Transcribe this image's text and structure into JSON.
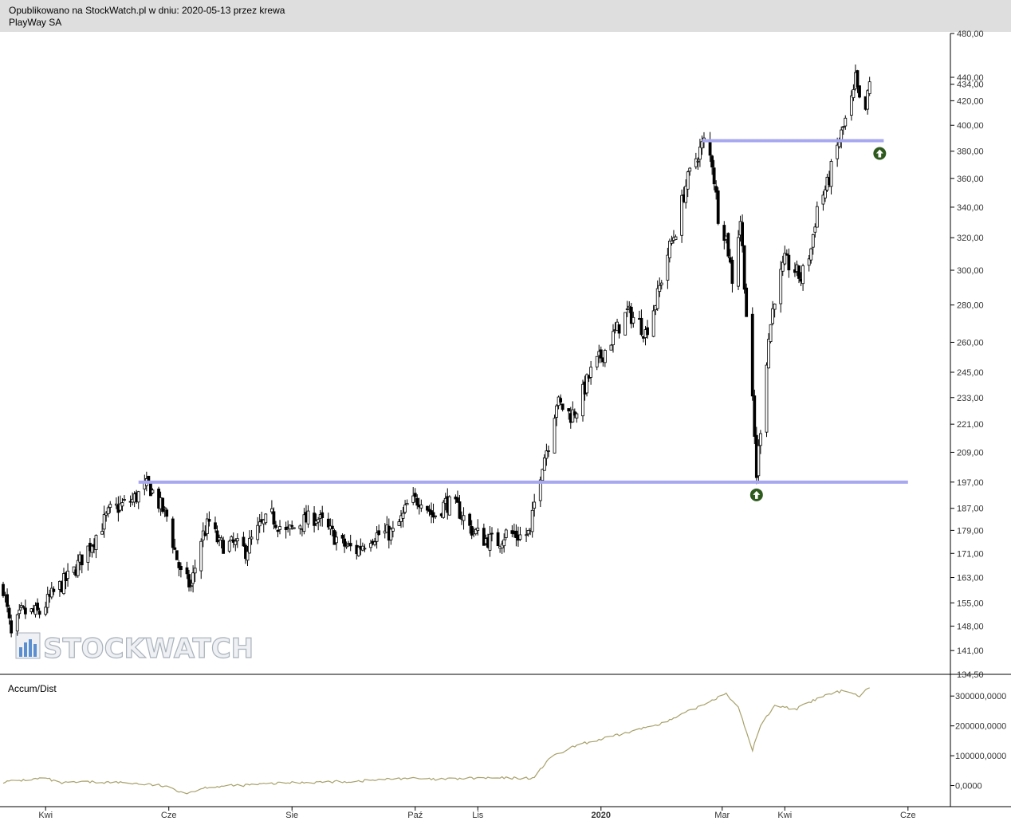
{
  "header": {
    "published": "Opublikowano na StockWatch.pl w dniu: 2020-05-13 przez krewa",
    "instrument": "PlayWay SA"
  },
  "watermark": "STOCKWATCH",
  "colors": {
    "header_bg": "#dedede",
    "candle_outline": "#000000",
    "candle_up": "#ffffff",
    "candle_down": "#000000",
    "support_line": "#a8a8f0",
    "accum_line": "#a8a16a",
    "signal_arrow": "#2e5a1e"
  },
  "icons": [
    "up-arrow-circle-icon",
    "stockwatch-logo-icon"
  ],
  "chart_data": [
    {
      "type": "candlestick",
      "title": "PlayWay SA",
      "y_scale": "log",
      "ylim": [
        134.5,
        480
      ],
      "y_ticks": [
        "480,00",
        "440,00",
        "434,00",
        "420,00",
        "400,00",
        "380,00",
        "360,00",
        "340,00",
        "320,00",
        "300,00",
        "280,00",
        "260,00",
        "245,00",
        "233,00",
        "221,00",
        "209,00",
        "197,00",
        "187,00",
        "179,00",
        "171,00",
        "163,00",
        "155,00",
        "148,00",
        "141,00",
        "134,50"
      ],
      "x_ticks": [
        "Kwi",
        "Cze",
        "Sie",
        "Paź",
        "Lis",
        "2020",
        "Mar",
        "Kwi",
        "Cze"
      ],
      "x_range": [
        "2019-03-11",
        "2020-06-22"
      ],
      "last_close_label": "434,00",
      "anchors": [
        [
          "2019-03-11",
          160
        ],
        [
          "2019-03-15",
          145
        ],
        [
          "2019-03-20",
          152
        ],
        [
          "2019-03-29",
          152
        ],
        [
          "2019-04-05",
          158
        ],
        [
          "2019-04-15",
          165
        ],
        [
          "2019-04-25",
          176
        ],
        [
          "2019-05-03",
          186
        ],
        [
          "2019-05-14",
          190
        ],
        [
          "2019-05-22",
          196
        ],
        [
          "2019-05-27",
          189
        ],
        [
          "2019-05-31",
          184
        ],
        [
          "2019-06-04",
          172
        ],
        [
          "2019-06-07",
          164
        ],
        [
          "2019-06-12",
          160
        ],
        [
          "2019-06-17",
          176
        ],
        [
          "2019-06-21",
          182
        ],
        [
          "2019-06-26",
          174
        ],
        [
          "2019-07-03",
          174
        ],
        [
          "2019-07-09",
          172
        ],
        [
          "2019-07-16",
          180
        ],
        [
          "2019-07-22",
          184
        ],
        [
          "2019-07-29",
          178
        ],
        [
          "2019-08-06",
          182
        ],
        [
          "2019-08-13",
          184
        ],
        [
          "2019-08-19",
          179
        ],
        [
          "2019-08-26",
          174
        ],
        [
          "2019-09-02",
          172
        ],
        [
          "2019-09-09",
          177
        ],
        [
          "2019-09-16",
          178
        ],
        [
          "2019-09-20",
          178
        ],
        [
          "2019-09-25",
          184
        ],
        [
          "2019-09-27",
          188
        ],
        [
          "2019-10-04",
          191
        ],
        [
          "2019-10-10",
          184
        ],
        [
          "2019-10-16",
          189
        ],
        [
          "2019-10-22",
          187
        ],
        [
          "2019-10-28",
          180
        ],
        [
          "2019-11-04",
          176
        ],
        [
          "2019-11-11",
          175
        ],
        [
          "2019-11-15",
          178
        ],
        [
          "2019-11-22",
          177
        ],
        [
          "2019-11-27",
          178
        ],
        [
          "2019-11-29",
          189
        ],
        [
          "2019-12-03",
          205
        ],
        [
          "2019-12-06",
          213
        ],
        [
          "2019-12-10",
          231
        ],
        [
          "2019-12-17",
          225
        ],
        [
          "2019-12-20",
          228
        ],
        [
          "2019-12-27",
          245
        ],
        [
          "2020-01-03",
          256
        ],
        [
          "2020-01-08",
          265
        ],
        [
          "2020-01-14",
          276
        ],
        [
          "2020-01-20",
          270
        ],
        [
          "2020-01-23",
          265
        ],
        [
          "2020-01-29",
          285
        ],
        [
          "2020-02-03",
          310
        ],
        [
          "2020-02-07",
          325
        ],
        [
          "2020-02-12",
          355
        ],
        [
          "2020-02-17",
          375
        ],
        [
          "2020-02-21",
          387
        ],
        [
          "2020-02-25",
          372
        ],
        [
          "2020-02-28",
          335
        ],
        [
          "2020-03-03",
          320
        ],
        [
          "2020-03-06",
          295
        ],
        [
          "2020-03-10",
          332
        ],
        [
          "2020-03-13",
          275
        ],
        [
          "2020-03-16",
          230
        ],
        [
          "2020-03-18",
          200
        ],
        [
          "2020-03-20",
          220
        ],
        [
          "2020-03-24",
          262
        ],
        [
          "2020-03-27",
          285
        ],
        [
          "2020-04-01",
          305
        ],
        [
          "2020-04-06",
          300
        ],
        [
          "2020-04-09",
          295
        ],
        [
          "2020-04-14",
          313
        ],
        [
          "2020-04-17",
          340
        ],
        [
          "2020-04-22",
          355
        ],
        [
          "2020-04-27",
          383
        ],
        [
          "2020-04-30",
          398
        ],
        [
          "2020-05-05",
          425
        ],
        [
          "2020-05-06",
          438
        ],
        [
          "2020-05-08",
          418
        ],
        [
          "2020-05-11",
          412
        ],
        [
          "2020-05-13",
          434
        ]
      ],
      "support_levels": [
        {
          "price": 197,
          "from": "2019-05-17",
          "to": "2020-06-01"
        },
        {
          "price": 388,
          "from": "2020-02-20",
          "to": "2020-05-20"
        }
      ],
      "signals": [
        {
          "date": "2020-03-18",
          "price": 197,
          "type": "buy"
        },
        {
          "date": "2020-05-18",
          "price": 388,
          "type": "buy"
        }
      ]
    },
    {
      "type": "line",
      "title": "Accum/Dist",
      "ylim": [
        -60000000,
        330000000
      ],
      "y_ticks": [
        "300000,0000",
        "200000,0000",
        "100000,0000",
        "0,0000"
      ],
      "y_tick_values": [
        300000000,
        200000000,
        100000000,
        0
      ],
      "anchors": [
        [
          "2019-03-11",
          12000000
        ],
        [
          "2019-04-01",
          25000000
        ],
        [
          "2019-04-08",
          8000000
        ],
        [
          "2019-04-22",
          12000000
        ],
        [
          "2019-05-10",
          10000000
        ],
        [
          "2019-05-28",
          0
        ],
        [
          "2019-06-10",
          -25000000
        ],
        [
          "2019-06-20",
          -5000000
        ],
        [
          "2019-07-10",
          2000000
        ],
        [
          "2019-08-01",
          10000000
        ],
        [
          "2019-09-01",
          14000000
        ],
        [
          "2019-09-26",
          25000000
        ],
        [
          "2019-10-10",
          20000000
        ],
        [
          "2019-11-01",
          25000000
        ],
        [
          "2019-11-29",
          25000000
        ],
        [
          "2019-12-06",
          90000000
        ],
        [
          "2019-12-20",
          135000000
        ],
        [
          "2020-01-10",
          170000000
        ],
        [
          "2020-02-03",
          215000000
        ],
        [
          "2020-02-20",
          270000000
        ],
        [
          "2020-03-03",
          310000000
        ],
        [
          "2020-03-09",
          260000000
        ],
        [
          "2020-03-16",
          120000000
        ],
        [
          "2020-03-20",
          200000000
        ],
        [
          "2020-03-27",
          270000000
        ],
        [
          "2020-04-06",
          255000000
        ],
        [
          "2020-04-20",
          300000000
        ],
        [
          "2020-05-01",
          320000000
        ],
        [
          "2020-05-08",
          300000000
        ],
        [
          "2020-05-13",
          330000000
        ]
      ]
    }
  ]
}
